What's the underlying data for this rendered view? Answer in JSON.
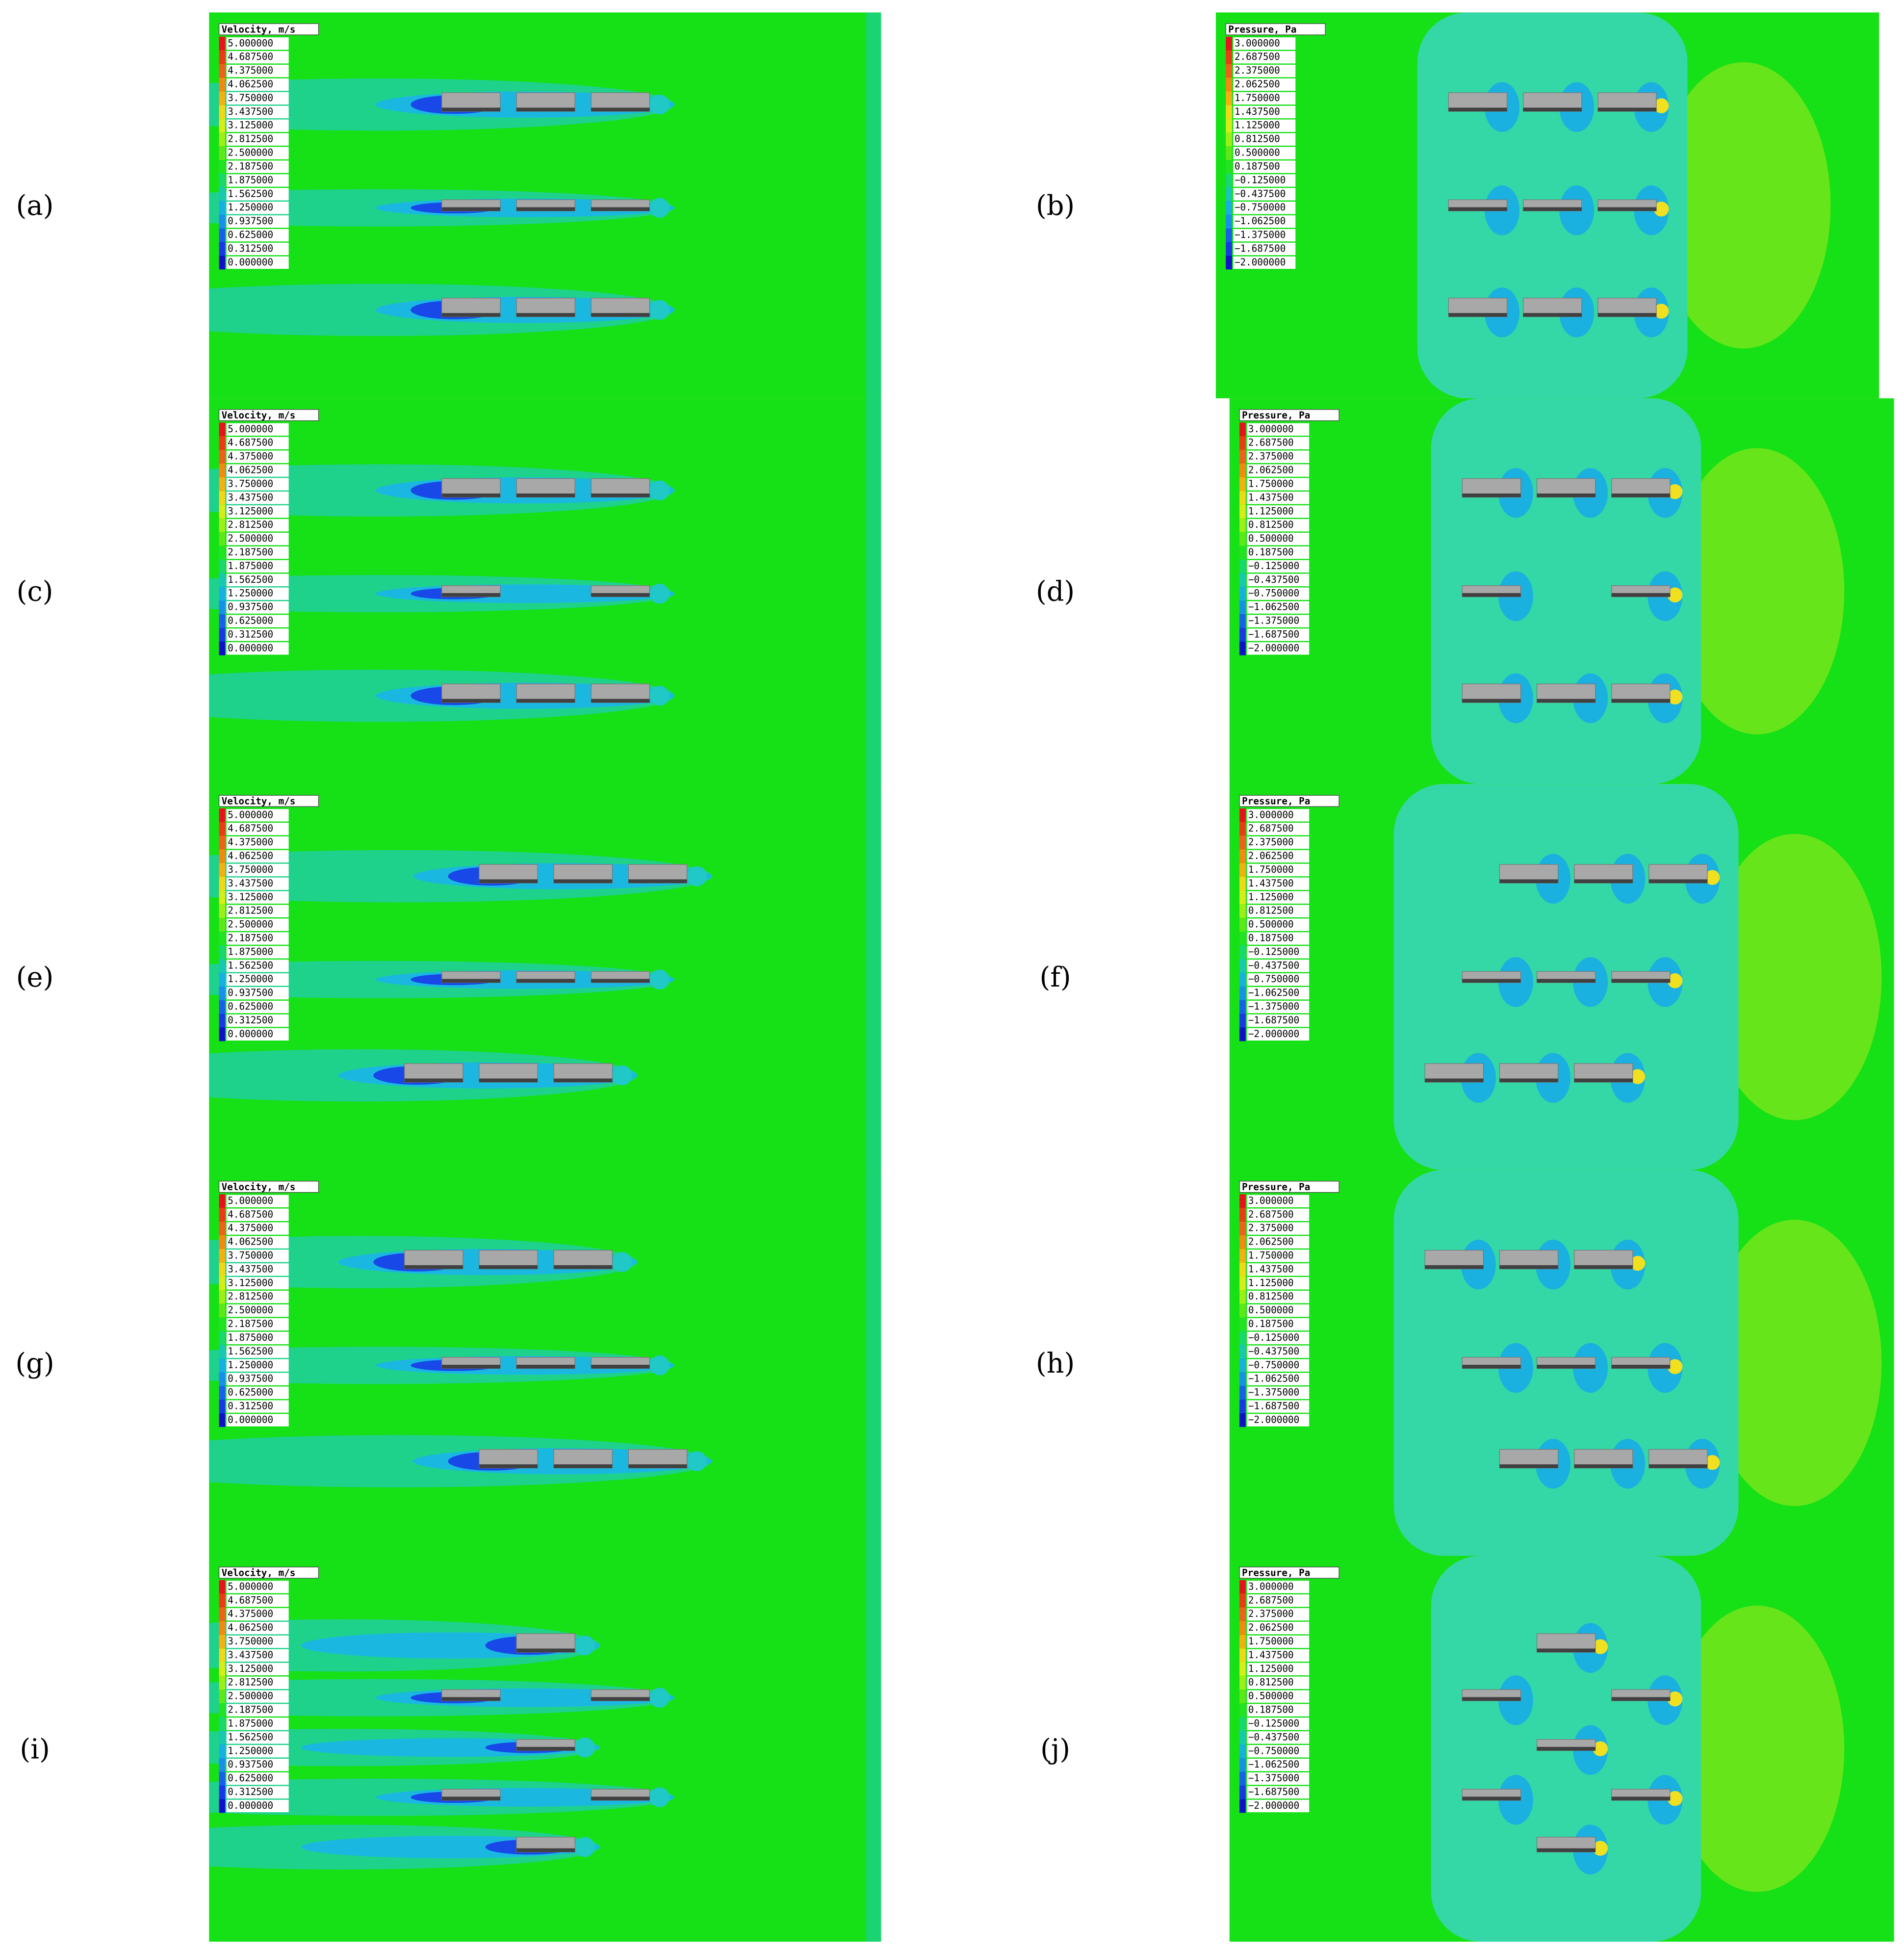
{
  "panels": [
    {
      "label": "(a)",
      "legend_title": "Velocity, m/s",
      "legend_labels": [
        "5.000000",
        "4.687500",
        "4.375000",
        "4.062500",
        "3.750000",
        "3.437500",
        "3.125000",
        "2.812500",
        "2.500000",
        "2.187500",
        "1.875000",
        "1.562500",
        "1.250000",
        "0.937500",
        "0.625000",
        "0.312500",
        "0.000000"
      ]
    },
    {
      "label": "(b)",
      "legend_title": "Pressure, Pa",
      "legend_labels": [
        "3.000000",
        "2.687500",
        "2.375000",
        "2.062500",
        "1.750000",
        "1.437500",
        "1.125000",
        "0.812500",
        "0.500000",
        "0.187500",
        "−0.125000",
        "−0.437500",
        "−0.750000",
        "−1.062500",
        "−1.375000",
        "−1.687500",
        "−2.000000"
      ]
    },
    {
      "label": "(c)",
      "legend_title": "Velocity, m/s",
      "legend_labels": [
        "5.000000",
        "4.687500",
        "4.375000",
        "4.062500",
        "3.750000",
        "3.437500",
        "3.125000",
        "2.812500",
        "2.500000",
        "2.187500",
        "1.875000",
        "1.562500",
        "1.250000",
        "0.937500",
        "0.625000",
        "0.312500",
        "0.000000"
      ]
    },
    {
      "label": "(d)",
      "legend_title": "Pressure, Pa",
      "legend_labels": [
        "3.000000",
        "2.687500",
        "2.375000",
        "2.062500",
        "1.750000",
        "1.437500",
        "1.125000",
        "0.812500",
        "0.500000",
        "0.187500",
        "−0.125000",
        "−0.437500",
        "−0.750000",
        "−1.062500",
        "−1.375000",
        "−1.687500",
        "−2.000000"
      ]
    },
    {
      "label": "(e)",
      "legend_title": "Velocity, m/s",
      "legend_labels": [
        "5.000000",
        "4.687500",
        "4.375000",
        "4.062500",
        "3.750000",
        "3.437500",
        "3.125000",
        "2.812500",
        "2.500000",
        "2.187500",
        "1.875000",
        "1.562500",
        "1.250000",
        "0.937500",
        "0.625000",
        "0.312500",
        "0.000000"
      ]
    },
    {
      "label": "(f)",
      "legend_title": "Pressure, Pa",
      "legend_labels": [
        "3.000000",
        "2.687500",
        "2.375000",
        "2.062500",
        "1.750000",
        "1.437500",
        "1.125000",
        "0.812500",
        "0.500000",
        "0.187500",
        "−0.125000",
        "−0.437500",
        "−0.750000",
        "−1.062500",
        "−1.375000",
        "−1.687500",
        "−2.000000"
      ]
    },
    {
      "label": "(g)",
      "legend_title": "Velocity, m/s",
      "legend_labels": [
        "5.000000",
        "4.687500",
        "4.375000",
        "4.062500",
        "3.750000",
        "3.437500",
        "3.125000",
        "2.812500",
        "2.500000",
        "2.187500",
        "1.875000",
        "1.562500",
        "1.250000",
        "0.937500",
        "0.625000",
        "0.312500",
        "0.000000"
      ]
    },
    {
      "label": "(h)",
      "legend_title": "Pressure, Pa",
      "legend_labels": [
        "3.000000",
        "2.687500",
        "2.375000",
        "2.062500",
        "1.750000",
        "1.437500",
        "1.125000",
        "0.812500",
        "0.500000",
        "0.187500",
        "−0.125000",
        "−0.437500",
        "−0.750000",
        "−1.062500",
        "−1.375000",
        "−1.687500",
        "−2.000000"
      ]
    },
    {
      "label": "(i)",
      "legend_title": "Velocity, m/s",
      "legend_labels": [
        "5.000000",
        "4.687500",
        "4.375000",
        "4.062500",
        "3.750000",
        "3.437500",
        "3.125000",
        "2.812500",
        "2.500000",
        "2.187500",
        "1.875000",
        "1.562500",
        "1.250000",
        "0.937500",
        "0.625000",
        "0.312500",
        "0.000000"
      ]
    },
    {
      "label": "(j)",
      "legend_title": "Pressure, Pa",
      "legend_labels": [
        "3.000000",
        "2.687500",
        "2.375000",
        "2.062500",
        "1.750000",
        "1.437500",
        "1.125000",
        "0.812500",
        "0.500000",
        "0.187500",
        "−0.125000",
        "−0.437500",
        "−0.750000",
        "−1.062500",
        "−1.375000",
        "−1.687500",
        "−2.000000"
      ]
    }
  ]
}
